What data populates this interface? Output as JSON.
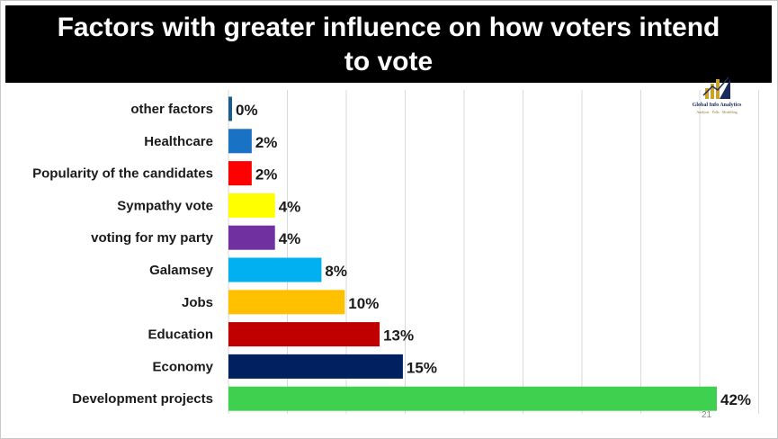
{
  "title": {
    "line1": "Factors with greater influence on how voters intend",
    "line2": "to vote"
  },
  "logo": {
    "name": "Global Info Analytics",
    "tagline": "Analysis · Polls · Modelling",
    "icon": "bar-chart-arrow-icon",
    "colors": {
      "navy": "#1a2a5e",
      "gold": "#c9a227"
    }
  },
  "page_number": "21",
  "chart_data": {
    "type": "bar",
    "orientation": "horizontal",
    "title": "Factors with greater influence on how voters intend to vote",
    "categories": [
      "other factors",
      "Healthcare",
      "Popularity of the candidates",
      "Sympathy vote",
      "voting for my party",
      "Galamsey",
      "Jobs",
      "Education",
      "Economy",
      "Development projects"
    ],
    "values": [
      0,
      2,
      2,
      4,
      4,
      8,
      10,
      13,
      15,
      42
    ],
    "data_labels": [
      "0%",
      "2%",
      "2%",
      "4%",
      "4%",
      "8%",
      "10%",
      "13%",
      "15%",
      "42%"
    ],
    "bar_colors": [
      "#1f5c8a",
      "#1a72c4",
      "#ff0000",
      "#ffff00",
      "#7030a0",
      "#00b0f0",
      "#ffc000",
      "#c00000",
      "#002060",
      "#40d050"
    ],
    "xlim": [
      0,
      42
    ],
    "xlabel": "",
    "ylabel": "",
    "grid": true,
    "legend": "none"
  }
}
